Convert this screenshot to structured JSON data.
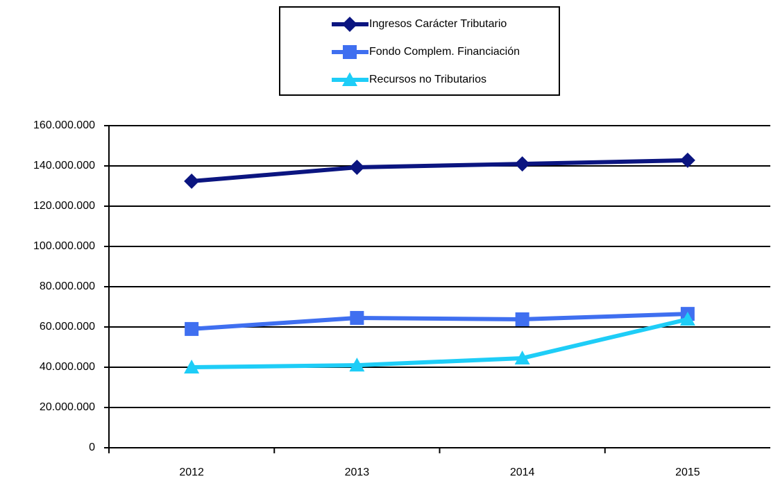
{
  "chart_data": {
    "type": "line",
    "categories": [
      "2012",
      "2013",
      "2014",
      "2015"
    ],
    "series": [
      {
        "name": "Ingresos Carácter Tributario",
        "color": "#0b1580",
        "marker": "diamond",
        "values": [
          132400000,
          139300000,
          141000000,
          142800000
        ]
      },
      {
        "name": "Fondo Complem. Financiación",
        "color": "#3f6ff0",
        "marker": "square",
        "values": [
          59000000,
          64500000,
          63800000,
          66500000
        ]
      },
      {
        "name": "Recursos no Tributarios",
        "color": "#1ecdf7",
        "marker": "triangle",
        "values": [
          40000000,
          41000000,
          44500000,
          63800000
        ]
      }
    ],
    "ylim": [
      0,
      160000000
    ],
    "yticks": [
      0,
      {
        "value": 20000000,
        "label": "20.000.000"
      },
      {
        "value": 40000000,
        "label": "40.000.000"
      },
      {
        "value": 60000000,
        "label": "60.000.000"
      },
      {
        "value": 80000000,
        "label": "80.000.000"
      },
      {
        "value": 100000000,
        "label": "100.000.000"
      },
      {
        "value": 120000000,
        "label": "120.000.000"
      },
      {
        "value": 140000000,
        "label": "140.000.000"
      },
      {
        "value": 160000000,
        "label": "160.000.000"
      }
    ],
    "grid": true,
    "legend": "top"
  }
}
